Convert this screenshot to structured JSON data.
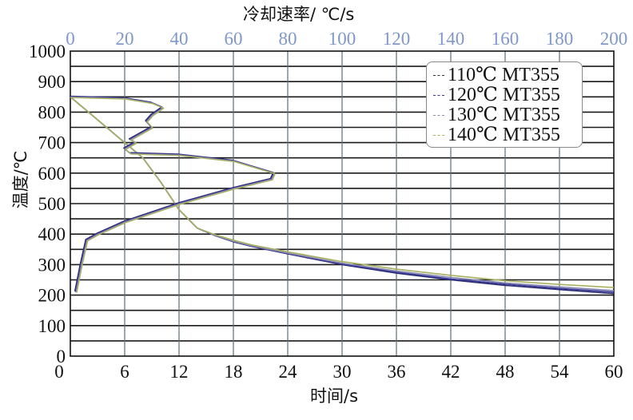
{
  "chart_data": {
    "type": "line",
    "title": "",
    "xlabel": "时间/s",
    "ylabel": "温度/℃",
    "x2label": "冷却速率/ ℃/s",
    "xlim": [
      0,
      60
    ],
    "x2lim": [
      0,
      200
    ],
    "ylim": [
      0,
      1000
    ],
    "xticks": [
      0,
      6,
      12,
      18,
      24,
      30,
      36,
      42,
      48,
      54,
      60
    ],
    "x2ticks": [
      0,
      20,
      40,
      60,
      80,
      100,
      120,
      140,
      160,
      180,
      200
    ],
    "yticks": [
      0,
      100,
      200,
      300,
      400,
      500,
      600,
      700,
      800,
      900,
      1000
    ],
    "grid": true,
    "legend_position": "upper right",
    "series": [
      {
        "name": "110℃ MT355",
        "color": "#2b2b6e"
      },
      {
        "name": "120℃ MT355",
        "color": "#3a3a9a"
      },
      {
        "name": "130℃ MT355",
        "color": "#8a8ab0"
      },
      {
        "name": "140℃ MT355",
        "color": "#a8b060"
      }
    ],
    "temperature_vs_time": {
      "x": [
        0,
        2,
        4,
        6,
        8,
        10,
        12,
        14,
        16,
        18,
        20,
        24,
        30,
        36,
        42,
        48,
        54,
        60
      ],
      "series": [
        {
          "name": "110℃ MT355",
          "values": [
            850,
            800,
            750,
            700,
            650,
            570,
            480,
            420,
            395,
            375,
            360,
            335,
            300,
            272,
            250,
            232,
            218,
            205
          ]
        },
        {
          "name": "120℃ MT355",
          "values": [
            850,
            800,
            750,
            700,
            650,
            570,
            480,
            420,
            395,
            375,
            360,
            336,
            302,
            275,
            253,
            236,
            222,
            210
          ]
        },
        {
          "name": "130℃ MT355",
          "values": [
            850,
            800,
            750,
            700,
            650,
            570,
            480,
            420,
            396,
            377,
            362,
            338,
            305,
            279,
            258,
            240,
            227,
            215
          ]
        },
        {
          "name": "140℃ MT355",
          "values": [
            850,
            800,
            750,
            700,
            650,
            570,
            480,
            420,
            398,
            380,
            365,
            342,
            310,
            285,
            265,
            247,
            235,
            225
          ]
        }
      ]
    },
    "temperature_vs_cooling_rate": {
      "points_rate_temp": [
        [
          0,
          850
        ],
        [
          20,
          845
        ],
        [
          30,
          830
        ],
        [
          34,
          815
        ],
        [
          30,
          790
        ],
        [
          28,
          770
        ],
        [
          30,
          750
        ],
        [
          26,
          730
        ],
        [
          22,
          710
        ],
        [
          24,
          700
        ],
        [
          20,
          680
        ],
        [
          22,
          665
        ],
        [
          40,
          660
        ],
        [
          60,
          640
        ],
        [
          75,
          600
        ],
        [
          74,
          580
        ],
        [
          60,
          550
        ],
        [
          40,
          500
        ],
        [
          20,
          440
        ],
        [
          10,
          400
        ],
        [
          6,
          380
        ],
        [
          4,
          300
        ],
        [
          2,
          210
        ]
      ]
    }
  },
  "legend": {
    "items": [
      "110℃ MT355",
      "120℃ MT355",
      "130℃ MT355",
      "140℃ MT355"
    ]
  },
  "labels": {
    "xlabel": "时间/s",
    "ylabel": "温度/℃",
    "x2label": "冷却速率/ ℃/s"
  },
  "colors": {
    "top_axis_ticks": "#7f97c9",
    "grid_h": "#1a1a1a",
    "grid_v": "#5a6e78"
  }
}
